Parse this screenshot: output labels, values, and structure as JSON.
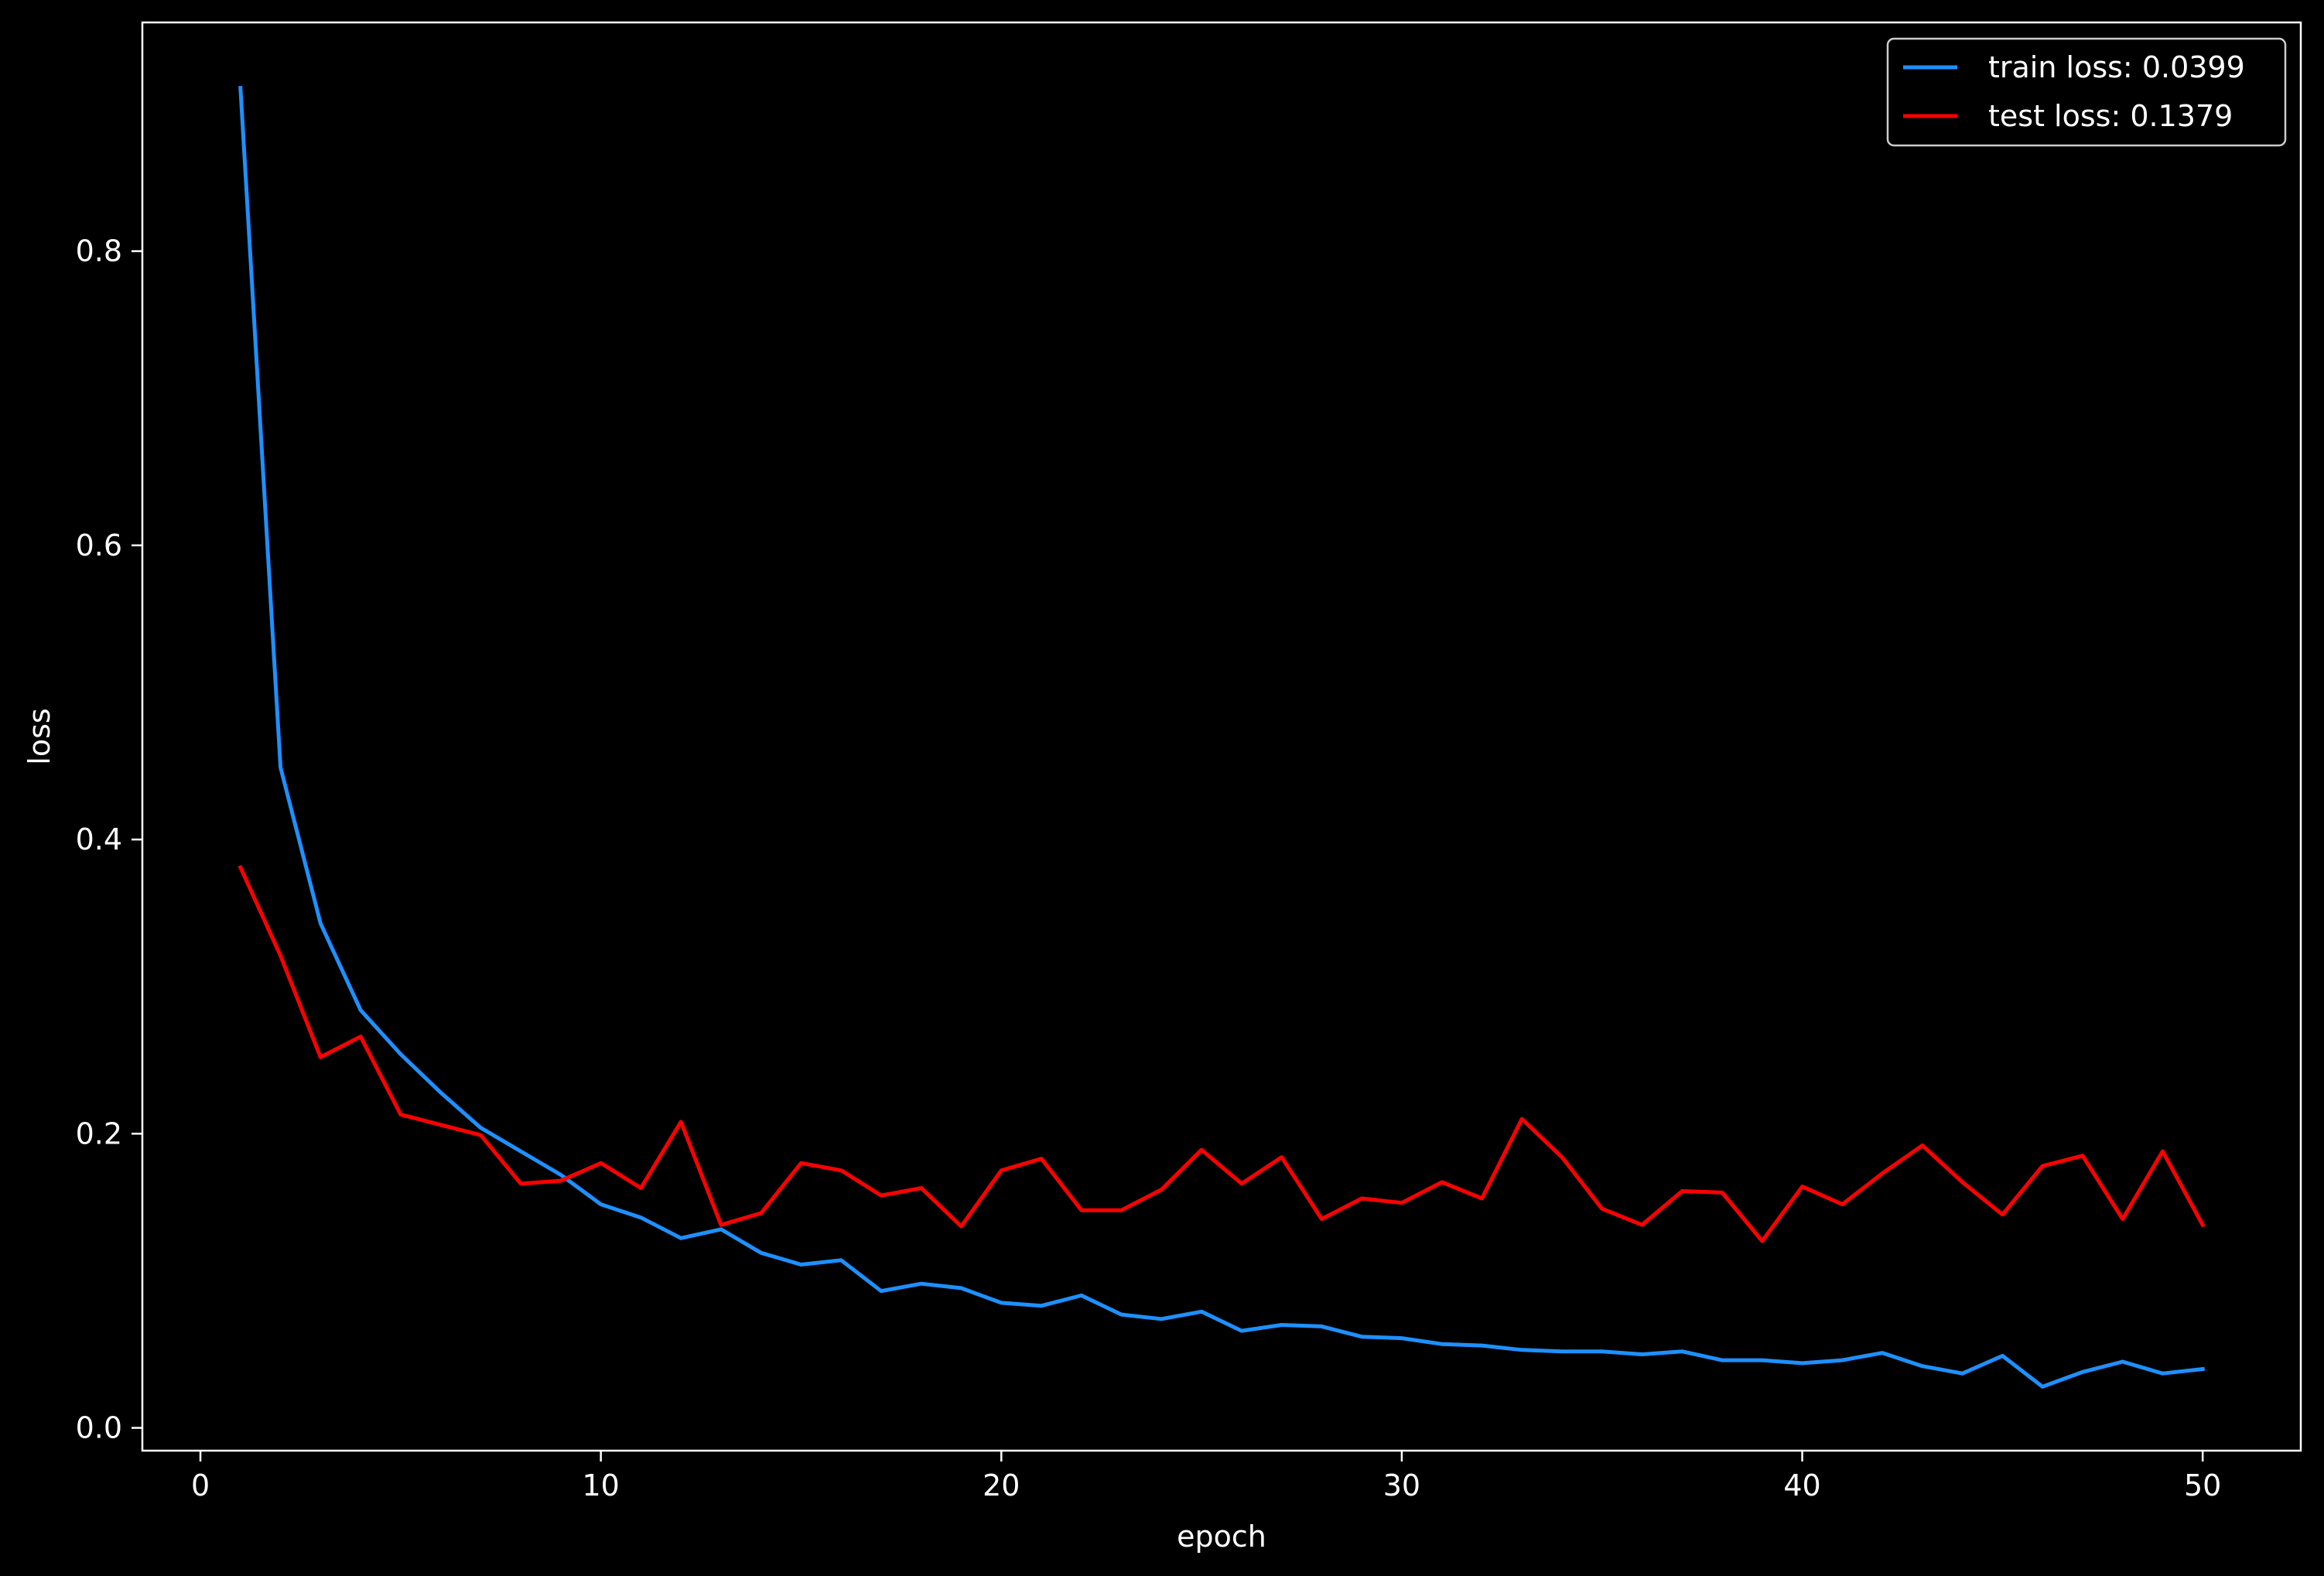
{
  "chart_data": {
    "type": "line",
    "xlabel": "epoch",
    "ylabel": "loss",
    "xlim": [
      -1.45,
      52.45
    ],
    "ylim": [
      -0.0155,
      0.9555
    ],
    "xticks": [
      0,
      10,
      20,
      30,
      40,
      50
    ],
    "xtick_labels": [
      "0",
      "10",
      "20",
      "30",
      "40",
      "50"
    ],
    "yticks": [
      0.0,
      0.2,
      0.4,
      0.6,
      0.8
    ],
    "ytick_labels": [
      "0.0",
      "0.2",
      "0.4",
      "0.6",
      "0.8"
    ],
    "grid": false,
    "legend_position": "top-right",
    "background": "#000000",
    "x": [
      1,
      2,
      3,
      4,
      5,
      6,
      7,
      8,
      9,
      10,
      11,
      12,
      13,
      14,
      15,
      16,
      17,
      18,
      19,
      20,
      21,
      22,
      23,
      24,
      25,
      26,
      27,
      28,
      29,
      30,
      31,
      32,
      33,
      34,
      35,
      36,
      37,
      38,
      39,
      40,
      41,
      42,
      43,
      44,
      45,
      46,
      47,
      48,
      49,
      50
    ],
    "series": [
      {
        "name": "train loss: 0.0399",
        "color": "#1e90ff",
        "values": [
          0.911,
          0.449,
          0.343,
          0.284,
          0.254,
          0.228,
          0.204,
          0.188,
          0.172,
          0.152,
          0.143,
          0.129,
          0.135,
          0.119,
          0.111,
          0.114,
          0.093,
          0.098,
          0.095,
          0.085,
          0.083,
          0.09,
          0.077,
          0.074,
          0.079,
          0.066,
          0.07,
          0.069,
          0.062,
          0.061,
          0.057,
          0.056,
          0.053,
          0.052,
          0.052,
          0.05,
          0.052,
          0.046,
          0.046,
          0.044,
          0.046,
          0.051,
          0.042,
          0.037,
          0.049,
          0.028,
          0.038,
          0.045,
          0.037,
          0.04
        ]
      },
      {
        "name": "test loss: 0.1379",
        "color": "#ff0000",
        "values": [
          0.381,
          0.321,
          0.252,
          0.266,
          0.213,
          0.206,
          0.199,
          0.166,
          0.168,
          0.18,
          0.163,
          0.208,
          0.138,
          0.146,
          0.18,
          0.175,
          0.158,
          0.163,
          0.137,
          0.175,
          0.183,
          0.148,
          0.148,
          0.162,
          0.189,
          0.166,
          0.184,
          0.142,
          0.156,
          0.153,
          0.167,
          0.156,
          0.21,
          0.184,
          0.149,
          0.138,
          0.161,
          0.16,
          0.127,
          0.164,
          0.152,
          0.173,
          0.192,
          0.167,
          0.145,
          0.178,
          0.185,
          0.142,
          0.188,
          0.138
        ]
      }
    ]
  }
}
